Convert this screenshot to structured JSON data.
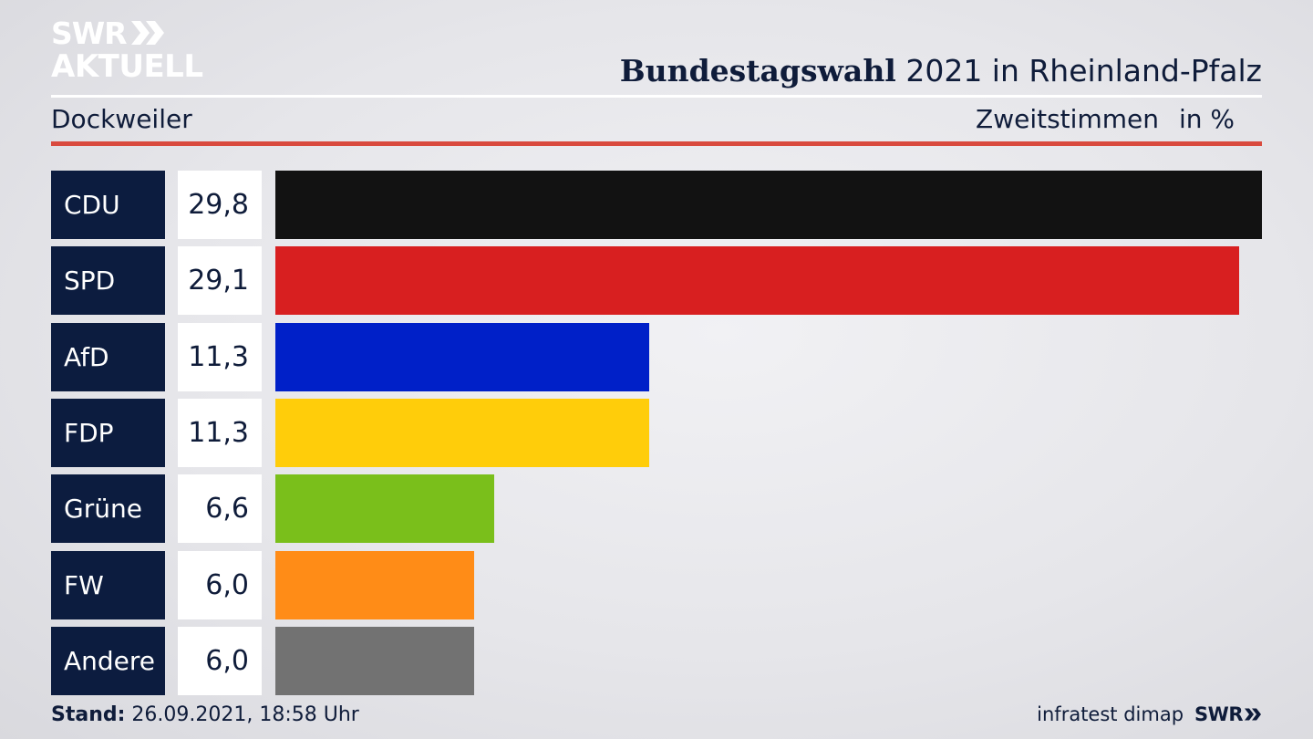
{
  "brand": {
    "logo_line1": "SWR",
    "logo_line2": "AKTUELL",
    "footer_logo": "SWR"
  },
  "header": {
    "title_bold": "Bundestagswahl",
    "title_rest": " 2021 in Rheinland-Pfalz",
    "location": "Dockweiler",
    "measure": "Zweitstimmen",
    "unit": "in %"
  },
  "footer": {
    "stand_label": "Stand:",
    "stand_value": " 26.09.2021, 18:58 Uhr",
    "source": "infratest dimap"
  },
  "colors": {
    "label_bg": "#0c1c3f",
    "accent_rule": "#d94a3e"
  },
  "chart_data": {
    "type": "bar",
    "orientation": "horizontal",
    "categories": [
      "CDU",
      "SPD",
      "AfD",
      "FDP",
      "Grüne",
      "FW",
      "Andere"
    ],
    "values": [
      29.8,
      29.1,
      11.3,
      11.3,
      6.6,
      6.0,
      6.0
    ],
    "value_labels": [
      "29,8",
      "29,1",
      "11,3",
      "11,3",
      "6,6",
      "6,0",
      "6,0"
    ],
    "colors": [
      "#121212",
      "#d81f20",
      "#0020c8",
      "#ffcd0a",
      "#7abf1b",
      "#ff8c17",
      "#727272"
    ],
    "xlim": [
      0,
      29.8
    ],
    "grid": false,
    "legend": "none"
  }
}
